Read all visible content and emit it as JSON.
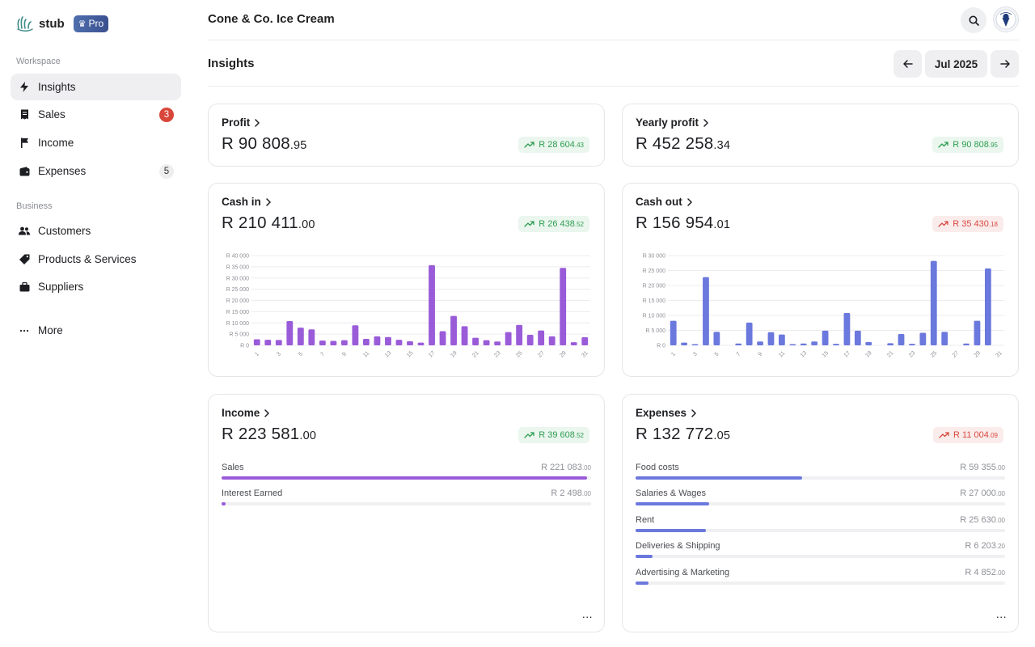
{
  "app": {
    "name": "stub",
    "plan_badge": "Pro"
  },
  "sidebar": {
    "sections": [
      {
        "label": "Workspace"
      },
      {
        "label": "Business"
      }
    ],
    "items": [
      {
        "label": "Insights",
        "icon": "bolt-icon",
        "active": true
      },
      {
        "label": "Sales",
        "icon": "receipt-icon",
        "count": "3",
        "count_color": "#d9463a"
      },
      {
        "label": "Income",
        "icon": "flag-icon"
      },
      {
        "label": "Expenses",
        "icon": "wallet-icon",
        "count": "5"
      },
      {
        "label": "Customers",
        "icon": "users-icon"
      },
      {
        "label": "Products & Services",
        "icon": "tag-icon"
      },
      {
        "label": "Suppliers",
        "icon": "briefcase-icon"
      },
      {
        "label": "More",
        "icon": "ellipsis-icon"
      }
    ]
  },
  "header": {
    "company": "Cone & Co. Ice Cream",
    "page_title": "Insights",
    "period": "Jul 2025",
    "search_icon": "search-icon",
    "avatar_icon": "ice-cream-logo-icon"
  },
  "colors": {
    "purple": "#9a5bd9",
    "blue": "#6b78dd",
    "green": "#2f9e52",
    "red": "#d8493f"
  },
  "cards": {
    "profit": {
      "title": "Profit",
      "amount_main": "R 90 808",
      "amount_cents": ".95",
      "change_main": "R 28 604",
      "change_cents": ".43",
      "trend": "up",
      "tone": "green"
    },
    "yearly_profit": {
      "title": "Yearly profit",
      "amount_main": "R 452 258",
      "amount_cents": ".34",
      "change_main": "R 90 808",
      "change_cents": ".95",
      "trend": "up",
      "tone": "green"
    },
    "cash_in": {
      "title": "Cash in",
      "amount_main": "R 210 411",
      "amount_cents": ".00",
      "change_main": "R 26 438",
      "change_cents": ".52",
      "trend": "up",
      "tone": "green"
    },
    "cash_out": {
      "title": "Cash out",
      "amount_main": "R 156 954",
      "amount_cents": ".01",
      "change_main": "R 35 430",
      "change_cents": ".18",
      "trend": "up",
      "tone": "red"
    },
    "income": {
      "title": "Income",
      "amount_main": "R 223 581",
      "amount_cents": ".00",
      "change_main": "R 39 608",
      "change_cents": ".52",
      "trend": "up",
      "tone": "green",
      "breakdown": [
        {
          "label": "Sales",
          "value_main": "R 221 083",
          "value_cents": ".00",
          "fraction": 0.988
        },
        {
          "label": "Interest Earned",
          "value_main": "R 2 498",
          "value_cents": ".00",
          "fraction": 0.011
        }
      ]
    },
    "expenses": {
      "title": "Expenses",
      "amount_main": "R 132 772",
      "amount_cents": ".05",
      "change_main": "R 11 004",
      "change_cents": ".09",
      "trend": "up",
      "tone": "red",
      "breakdown": [
        {
          "label": "Food costs",
          "value_main": "R 59 355",
          "value_cents": ".00",
          "fraction": 0.45
        },
        {
          "label": "Salaries & Wages",
          "value_main": "R 27 000",
          "value_cents": ".00",
          "fraction": 0.2
        },
        {
          "label": "Rent",
          "value_main": "R 25 630",
          "value_cents": ".00",
          "fraction": 0.19
        },
        {
          "label": "Deliveries & Shipping",
          "value_main": "R 6 203",
          "value_cents": ".20",
          "fraction": 0.045
        },
        {
          "label": "Advertising & Marketing",
          "value_main": "R 4 852",
          "value_cents": ".00",
          "fraction": 0.035
        }
      ]
    },
    "more_label": "..."
  },
  "chart_data": [
    {
      "type": "bar",
      "x": [
        1,
        2,
        3,
        4,
        5,
        6,
        7,
        8,
        9,
        10,
        11,
        12,
        13,
        14,
        15,
        16,
        17,
        18,
        19,
        20,
        21,
        22,
        23,
        24,
        25,
        26,
        27,
        28,
        29,
        30,
        31
      ],
      "x_tick_labels": [
        "1",
        "3",
        "5",
        "7",
        "9",
        "11",
        "13",
        "15",
        "17",
        "19",
        "21",
        "23",
        "25",
        "27",
        "29",
        "31"
      ],
      "values": [
        2700,
        2500,
        2400,
        10800,
        7900,
        7100,
        2100,
        2000,
        2300,
        8900,
        2900,
        4000,
        3700,
        2500,
        1800,
        1200,
        35700,
        6300,
        13100,
        8500,
        3400,
        2300,
        1700,
        5900,
        9100,
        4700,
        6600,
        4000,
        34500,
        1400,
        3600
      ],
      "y_ticks": [
        "R 0",
        "R 5 000",
        "R 10 000",
        "R 15 000",
        "R 20 000",
        "R 25 000",
        "R 30 000",
        "R 35 000",
        "R 40 000"
      ],
      "ylim": [
        0,
        40000
      ],
      "color": "#9a5bd9",
      "grid": true
    },
    {
      "type": "bar",
      "x": [
        1,
        2,
        3,
        4,
        5,
        6,
        7,
        8,
        9,
        10,
        11,
        12,
        13,
        14,
        15,
        16,
        17,
        18,
        19,
        20,
        21,
        22,
        23,
        24,
        25,
        26,
        27,
        28,
        29,
        30,
        31
      ],
      "x_tick_labels": [
        "1",
        "3",
        "5",
        "7",
        "9",
        "11",
        "13",
        "15",
        "17",
        "19",
        "21",
        "23",
        "25",
        "27",
        "29",
        "31"
      ],
      "values": [
        8200,
        900,
        300,
        22800,
        4500,
        0,
        600,
        7600,
        1300,
        4400,
        3600,
        300,
        600,
        1300,
        4900,
        500,
        10800,
        4900,
        1100,
        0,
        700,
        3800,
        500,
        4200,
        28200,
        4500,
        0,
        600,
        8200,
        25700,
        0
      ],
      "y_ticks": [
        "R 0",
        "R 5 000",
        "R 10 000",
        "R 15 000",
        "R 20 000",
        "R 25 000",
        "R 30 000"
      ],
      "ylim": [
        0,
        30000
      ],
      "color": "#6b78dd",
      "grid": true
    }
  ]
}
